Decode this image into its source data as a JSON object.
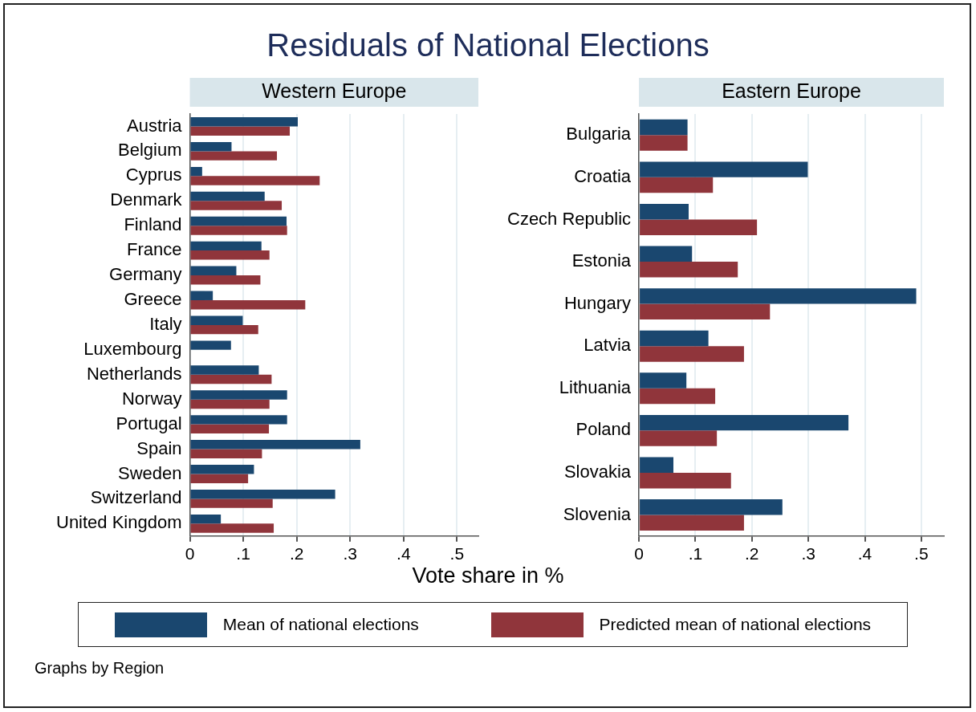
{
  "chart_data": [
    {
      "type": "bar",
      "orientation": "horizontal",
      "title": "Residuals of National Elections",
      "subtitle": "Western Europe",
      "xlabel": "Vote share in %",
      "annotations": [
        "Graphs by Region"
      ],
      "legend": "bottom",
      "grid": "x",
      "categories": [
        "Austria",
        "Belgium",
        "Cyprus",
        "Denmark",
        "Finland",
        "France",
        "Germany",
        "Greece",
        "Italy",
        "Luxembourg",
        "Netherlands",
        "Norway",
        "Portugal",
        "Spain",
        "Sweden",
        "Switzerland",
        "United Kingdom"
      ],
      "xlim": [
        0,
        0.54
      ],
      "xticks": [
        0,
        {
          "value": 0.1,
          "label": ".1"
        },
        {
          "value": 0.2,
          "label": ".2"
        },
        {
          "value": 0.3,
          "label": ".3"
        },
        {
          "value": 0.4,
          "label": ".4"
        },
        {
          "value": 0.5,
          "label": ".5"
        }
      ],
      "series": [
        {
          "name": "Mean of national elections",
          "color": "#1a476f",
          "values": [
            0.202,
            0.078,
            0.023,
            0.14,
            0.181,
            0.134,
            0.087,
            0.043,
            0.099,
            0.077,
            0.129,
            0.182,
            0.182,
            0.319,
            0.12,
            0.272,
            0.058
          ]
        },
        {
          "name": "Predicted mean of national elections",
          "color": "#90353b",
          "values": [
            0.187,
            0.163,
            0.243,
            0.172,
            0.182,
            0.149,
            0.132,
            0.216,
            0.128,
            null,
            0.153,
            0.149,
            0.148,
            0.135,
            0.109,
            0.155,
            0.157
          ]
        }
      ]
    },
    {
      "type": "bar",
      "orientation": "horizontal",
      "subtitle": "Eastern Europe",
      "grid": "x",
      "categories": [
        "Bulgaria",
        "Croatia",
        "Czech Republic",
        "Estonia",
        "Hungary",
        "Latvia",
        "Lithuania",
        "Poland",
        "Slovakia",
        "Slovenia"
      ],
      "xlim": [
        0,
        0.54
      ],
      "xticks": [
        0,
        {
          "value": 0.1,
          "label": ".1"
        },
        {
          "value": 0.2,
          "label": ".2"
        },
        {
          "value": 0.3,
          "label": ".3"
        },
        {
          "value": 0.4,
          "label": ".4"
        },
        {
          "value": 0.5,
          "label": ".5"
        }
      ],
      "series": [
        {
          "color": "#1a476f",
          "values": [
            0.086,
            0.299,
            0.088,
            0.094,
            0.491,
            0.123,
            0.084,
            0.371,
            0.061,
            0.254
          ]
        },
        {
          "color": "#90353b",
          "values": [
            0.086,
            0.131,
            0.209,
            0.175,
            0.232,
            0.186,
            0.135,
            0.138,
            0.163,
            0.186
          ]
        }
      ]
    }
  ]
}
